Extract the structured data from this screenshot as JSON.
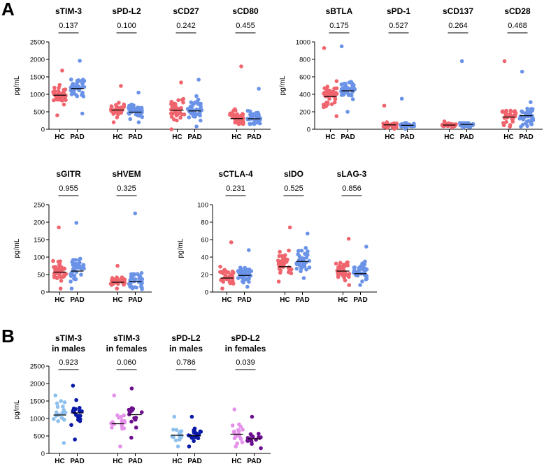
{
  "figure": {
    "panels": [
      {
        "letter": "A"
      },
      {
        "letter": "B"
      }
    ]
  },
  "colors": {
    "HC": "#f0656d",
    "PAD": "#6a93e8",
    "HC_males": "#8ec0ee",
    "PAD_males": "#0a19a8",
    "HC_females": "#e591ea",
    "PAD_females": "#6c0f8e"
  },
  "chart_data": [
    {
      "type": "scatter",
      "panel": "A",
      "title": "",
      "ylabel": "pg/mL",
      "ylim": [
        0,
        2500
      ],
      "yticks": [
        0,
        500,
        1000,
        1500,
        2000,
        2500
      ],
      "groups": [
        {
          "name": "sTIM-3",
          "p_value": "0.137",
          "categories": [
            "HC",
            "PAD"
          ],
          "medians": [
            975,
            1165
          ],
          "series": [
            {
              "name": "HC",
              "color": "HC",
              "n": 38,
              "center": 980,
              "spread": 280,
              "min": 400,
              "max": 1680
            },
            {
              "name": "PAD",
              "color": "PAD",
              "n": 40,
              "center": 1150,
              "spread": 330,
              "min": 450,
              "max": 1960
            }
          ]
        },
        {
          "name": "sPD-L2",
          "p_value": "0.100",
          "categories": [
            "HC",
            "PAD"
          ],
          "medians": [
            550,
            490
          ],
          "series": [
            {
              "name": "HC",
              "color": "HC",
              "n": 38,
              "center": 560,
              "spread": 220,
              "min": 200,
              "max": 1240
            },
            {
              "name": "PAD",
              "color": "PAD",
              "n": 40,
              "center": 500,
              "spread": 160,
              "min": 200,
              "max": 1050
            }
          ]
        },
        {
          "name": "sCD27",
          "p_value": "0.242",
          "categories": [
            "HC",
            "PAD"
          ],
          "medians": [
            545,
            525
          ],
          "series": [
            {
              "name": "HC",
              "color": "HC",
              "n": 38,
              "center": 540,
              "spread": 280,
              "min": 0,
              "max": 1340
            },
            {
              "name": "PAD",
              "color": "PAD",
              "n": 40,
              "center": 560,
              "spread": 290,
              "min": 80,
              "max": 1420
            }
          ]
        },
        {
          "name": "sCD80",
          "p_value": "0.455",
          "categories": [
            "HC",
            "PAD"
          ],
          "medians": [
            305,
            300
          ],
          "series": [
            {
              "name": "HC",
              "color": "HC",
              "n": 38,
              "center": 330,
              "spread": 200,
              "min": 150,
              "max": 1800
            },
            {
              "name": "PAD",
              "color": "PAD",
              "n": 40,
              "center": 320,
              "spread": 180,
              "min": 150,
              "max": 1160
            }
          ]
        }
      ]
    },
    {
      "type": "scatter",
      "panel": "A",
      "title": "",
      "ylabel": "pg/mL",
      "ylim": [
        0,
        1000
      ],
      "yticks": [
        0,
        200,
        400,
        600,
        800,
        1000
      ],
      "groups": [
        {
          "name": "sBTLA",
          "p_value": "0.175",
          "categories": [
            "HC",
            "PAD"
          ],
          "medians": [
            375,
            440
          ],
          "series": [
            {
              "name": "HC",
              "color": "HC",
              "n": 38,
              "center": 390,
              "spread": 150,
              "min": 150,
              "max": 930
            },
            {
              "name": "PAD",
              "color": "PAD",
              "n": 40,
              "center": 440,
              "spread": 120,
              "min": 200,
              "max": 950
            }
          ]
        },
        {
          "name": "sPD-1",
          "p_value": "0.527",
          "categories": [
            "HC",
            "PAD"
          ],
          "medians": [
            50,
            45
          ],
          "series": [
            {
              "name": "HC",
              "color": "HC",
              "n": 38,
              "center": 45,
              "spread": 25,
              "min": 5,
              "max": 270
            },
            {
              "name": "PAD",
              "color": "PAD",
              "n": 40,
              "center": 45,
              "spread": 22,
              "min": 5,
              "max": 350
            }
          ]
        },
        {
          "name": "sCD137",
          "p_value": "0.264",
          "categories": [
            "HC",
            "PAD"
          ],
          "medians": [
            48,
            55
          ],
          "series": [
            {
              "name": "HC",
              "color": "HC",
              "n": 38,
              "center": 50,
              "spread": 14,
              "min": 20,
              "max": 90
            },
            {
              "name": "PAD",
              "color": "PAD",
              "n": 40,
              "center": 55,
              "spread": 22,
              "min": 20,
              "max": 780
            }
          ]
        },
        {
          "name": "sCD28",
          "p_value": "0.468",
          "categories": [
            "HC",
            "PAD"
          ],
          "medians": [
            140,
            155
          ],
          "series": [
            {
              "name": "HC",
              "color": "HC",
              "n": 38,
              "center": 150,
              "spread": 90,
              "min": 30,
              "max": 780
            },
            {
              "name": "PAD",
              "color": "PAD",
              "n": 40,
              "center": 170,
              "spread": 110,
              "min": 30,
              "max": 660
            }
          ]
        }
      ]
    },
    {
      "type": "scatter",
      "panel": "A",
      "title": "",
      "ylabel": "pg/mL",
      "ylim": [
        0,
        250
      ],
      "yticks": [
        0,
        50,
        100,
        150,
        200,
        250
      ],
      "groups": [
        {
          "name": "sGITR",
          "p_value": "0.955",
          "categories": [
            "HC",
            "PAD"
          ],
          "medians": [
            57,
            60
          ],
          "series": [
            {
              "name": "HC",
              "color": "HC",
              "n": 38,
              "center": 60,
              "spread": 28,
              "min": 10,
              "max": 185
            },
            {
              "name": "PAD",
              "color": "PAD",
              "n": 40,
              "center": 62,
              "spread": 34,
              "min": 10,
              "max": 198
            }
          ]
        },
        {
          "name": "sHVEM",
          "p_value": "0.325",
          "categories": [
            "HC",
            "PAD"
          ],
          "medians": [
            28,
            30
          ],
          "series": [
            {
              "name": "HC",
              "color": "HC",
              "n": 38,
              "center": 30,
              "spread": 12,
              "min": 10,
              "max": 75
            },
            {
              "name": "PAD",
              "color": "PAD",
              "n": 40,
              "center": 32,
              "spread": 18,
              "min": 8,
              "max": 225
            }
          ]
        }
      ]
    },
    {
      "type": "scatter",
      "panel": "A",
      "title": "",
      "ylabel": "pg/mL",
      "ylim": [
        0,
        100
      ],
      "yticks": [
        0,
        20,
        40,
        60,
        80,
        100
      ],
      "groups": [
        {
          "name": "sCTLA-4",
          "p_value": "0.231",
          "categories": [
            "HC",
            "PAD"
          ],
          "medians": [
            16,
            19
          ],
          "series": [
            {
              "name": "HC",
              "color": "HC",
              "n": 38,
              "center": 18,
              "spread": 8,
              "min": 4,
              "max": 57
            },
            {
              "name": "PAD",
              "color": "PAD",
              "n": 40,
              "center": 20,
              "spread": 8,
              "min": 6,
              "max": 48
            }
          ]
        },
        {
          "name": "sIDO",
          "p_value": "0.525",
          "categories": [
            "HC",
            "PAD"
          ],
          "medians": [
            29,
            35
          ],
          "series": [
            {
              "name": "HC",
              "color": "HC",
              "n": 38,
              "center": 32,
              "spread": 12,
              "min": 12,
              "max": 74
            },
            {
              "name": "PAD",
              "color": "PAD",
              "n": 40,
              "center": 36,
              "spread": 11,
              "min": 16,
              "max": 67
            }
          ]
        },
        {
          "name": "sLAG-3",
          "p_value": "0.856",
          "categories": [
            "HC",
            "PAD"
          ],
          "medians": [
            24,
            21
          ],
          "series": [
            {
              "name": "HC",
              "color": "HC",
              "n": 38,
              "center": 25,
              "spread": 9,
              "min": 8,
              "max": 61
            },
            {
              "name": "PAD",
              "color": "PAD",
              "n": 40,
              "center": 23,
              "spread": 9,
              "min": 8,
              "max": 52
            }
          ]
        }
      ]
    },
    {
      "type": "scatter",
      "panel": "B",
      "title": "",
      "ylabel": "pg/mL",
      "ylim": [
        0,
        2500
      ],
      "yticks": [
        0,
        500,
        1000,
        1500,
        2000,
        2500
      ],
      "groups": [
        {
          "name": "sTIM-3",
          "subtitle": "in males",
          "p_value": "0.923",
          "categories": [
            "HC",
            "PAD"
          ],
          "medians": [
            1100,
            1160
          ],
          "series": [
            {
              "name": "HC",
              "color": "HC_males",
              "n": 18,
              "center": 1100,
              "spread": 300,
              "min": 300,
              "max": 1660
            },
            {
              "name": "PAD",
              "color": "PAD_males",
              "n": 20,
              "center": 1160,
              "spread": 320,
              "min": 400,
              "max": 1940
            }
          ]
        },
        {
          "name": "sTIM-3",
          "subtitle": "in females",
          "p_value": "0.060",
          "categories": [
            "HC",
            "PAD"
          ],
          "medians": [
            850,
            1110
          ],
          "series": [
            {
              "name": "HC",
              "color": "HC_females",
              "n": 20,
              "center": 870,
              "spread": 280,
              "min": 200,
              "max": 1660
            },
            {
              "name": "PAD",
              "color": "PAD_females",
              "n": 17,
              "center": 1110,
              "spread": 330,
              "min": 450,
              "max": 1860
            }
          ]
        },
        {
          "name": "sPD-L2",
          "subtitle": "in males",
          "p_value": "0.786",
          "categories": [
            "HC",
            "PAD"
          ],
          "medians": [
            520,
            505
          ],
          "series": [
            {
              "name": "HC",
              "color": "HC_males",
              "n": 18,
              "center": 520,
              "spread": 170,
              "min": 200,
              "max": 1050
            },
            {
              "name": "PAD",
              "color": "PAD_males",
              "n": 20,
              "center": 510,
              "spread": 160,
              "min": 200,
              "max": 1050
            }
          ]
        },
        {
          "name": "sPD-L2",
          "subtitle": "in females",
          "p_value": "0.039",
          "categories": [
            "HC",
            "PAD"
          ],
          "medians": [
            550,
            420
          ],
          "series": [
            {
              "name": "HC",
              "color": "HC_females",
              "n": 20,
              "center": 580,
              "spread": 260,
              "min": 200,
              "max": 1260
            },
            {
              "name": "PAD",
              "color": "PAD_females",
              "n": 17,
              "center": 430,
              "spread": 150,
              "min": 150,
              "max": 1050
            }
          ]
        }
      ]
    }
  ]
}
